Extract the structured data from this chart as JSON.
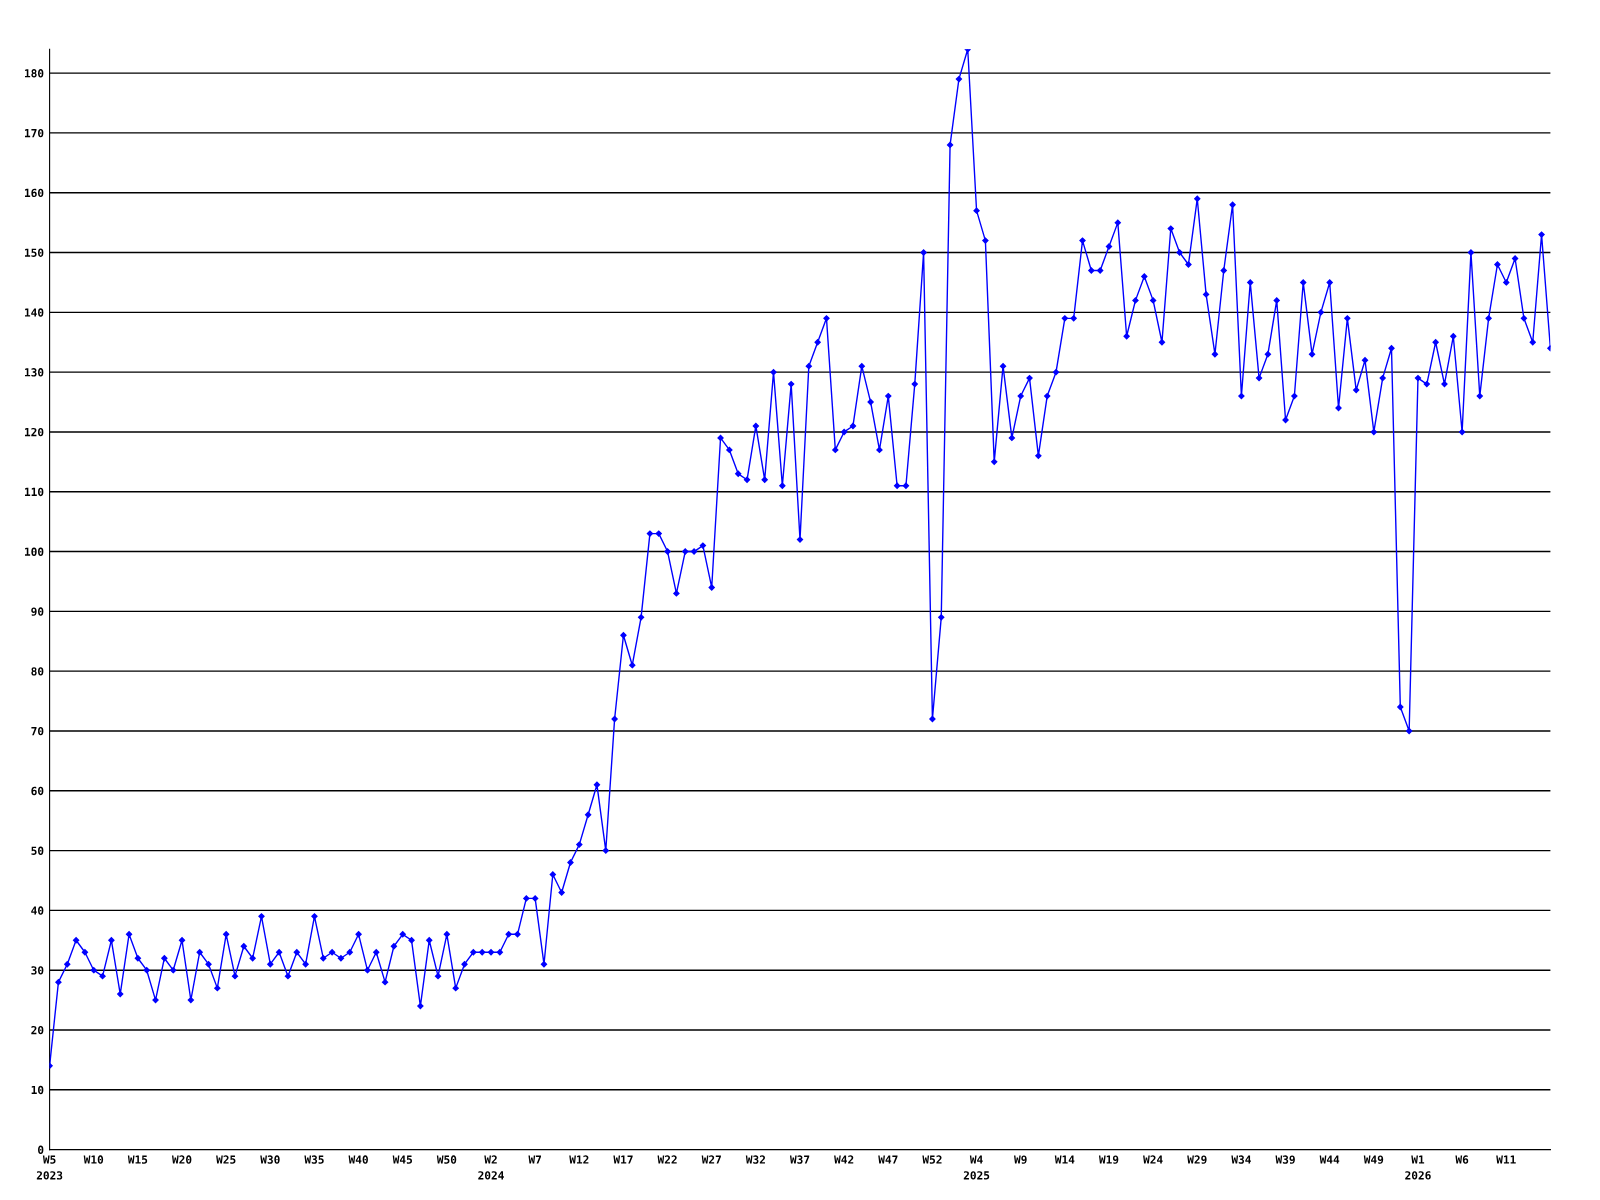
{
  "chart_data": {
    "type": "line",
    "categories": [
      "W5\n2023",
      null,
      null,
      null,
      null,
      "W10",
      null,
      null,
      null,
      null,
      "W15",
      null,
      null,
      null,
      null,
      "W20",
      null,
      null,
      null,
      null,
      "W25",
      null,
      null,
      null,
      null,
      "W30",
      null,
      null,
      null,
      null,
      "W35",
      null,
      null,
      null,
      null,
      "W40",
      null,
      null,
      null,
      null,
      "W45",
      null,
      null,
      null,
      null,
      "W50",
      null,
      null,
      null,
      null,
      "W2\n2024",
      null,
      null,
      null,
      null,
      "W7",
      null,
      null,
      null,
      null,
      "W12",
      null,
      null,
      null,
      null,
      "W17",
      null,
      null,
      null,
      null,
      "W22",
      null,
      null,
      null,
      null,
      "W27",
      null,
      null,
      null,
      null,
      "W32",
      null,
      null,
      null,
      null,
      "W37",
      null,
      null,
      null,
      null,
      "W42",
      null,
      null,
      null,
      null,
      "W47",
      null,
      null,
      null,
      null,
      "W52",
      null,
      null,
      null,
      null,
      "W4\n2025",
      null,
      null,
      null,
      null,
      "W9",
      null,
      null,
      null,
      null,
      "W14",
      null,
      null,
      null,
      null,
      "W19",
      null,
      null,
      null,
      null,
      "W24",
      null,
      null,
      null,
      null,
      "W29",
      null,
      null,
      null,
      null,
      "W34",
      null,
      null,
      null,
      null,
      "W39",
      null,
      null,
      null,
      null,
      "W44",
      null,
      null,
      null,
      null,
      "W49",
      null,
      null,
      null,
      null,
      "W1\n2026",
      null,
      null,
      null,
      null,
      "W6",
      null,
      null,
      null,
      null,
      "W11",
      null,
      null,
      null,
      null,
      null
    ],
    "series": [
      {
        "color": "#0000ff",
        "values": [
          14,
          28,
          31,
          35,
          33,
          30,
          29,
          35,
          26,
          36,
          32,
          30,
          25,
          32,
          30,
          35,
          25,
          33,
          31,
          27,
          36,
          29,
          34,
          32,
          39,
          31,
          33,
          29,
          33,
          31,
          39,
          32,
          33,
          32,
          33,
          36,
          30,
          33,
          28,
          34,
          36,
          35,
          24,
          35,
          29,
          36,
          27,
          31,
          33,
          33,
          33,
          33,
          36,
          36,
          42,
          42,
          31,
          46,
          43,
          48,
          51,
          56,
          61,
          50,
          72,
          86,
          81,
          89,
          103,
          103,
          100,
          93,
          100,
          100,
          101,
          94,
          119,
          117,
          113,
          112,
          121,
          112,
          130,
          111,
          128,
          102,
          131,
          135,
          139,
          117,
          120,
          121,
          131,
          125,
          117,
          126,
          111,
          111,
          128,
          150,
          72,
          89,
          168,
          179,
          184,
          157,
          152,
          115,
          131,
          119,
          126,
          129,
          116,
          126,
          130,
          139,
          139,
          152,
          147,
          147,
          151,
          155,
          136,
          142,
          146,
          142,
          135,
          154,
          150,
          148,
          159,
          143,
          133,
          147,
          158,
          126,
          145,
          129,
          133,
          142,
          122,
          126,
          145,
          133,
          140,
          145,
          124,
          139,
          127,
          132,
          120,
          129,
          134,
          74,
          70,
          129,
          128,
          135,
          128,
          136,
          120,
          150,
          126,
          139,
          148,
          145,
          149,
          139,
          135,
          153,
          134
        ]
      }
    ],
    "ylim": [
      0,
      184
    ],
    "yticks": [
      0,
      10,
      20,
      30,
      40,
      50,
      60,
      70,
      80,
      90,
      100,
      110,
      120,
      130,
      140,
      150,
      160,
      170,
      180
    ],
    "grid": "y",
    "marker": "diamond",
    "line_style": "solid"
  }
}
